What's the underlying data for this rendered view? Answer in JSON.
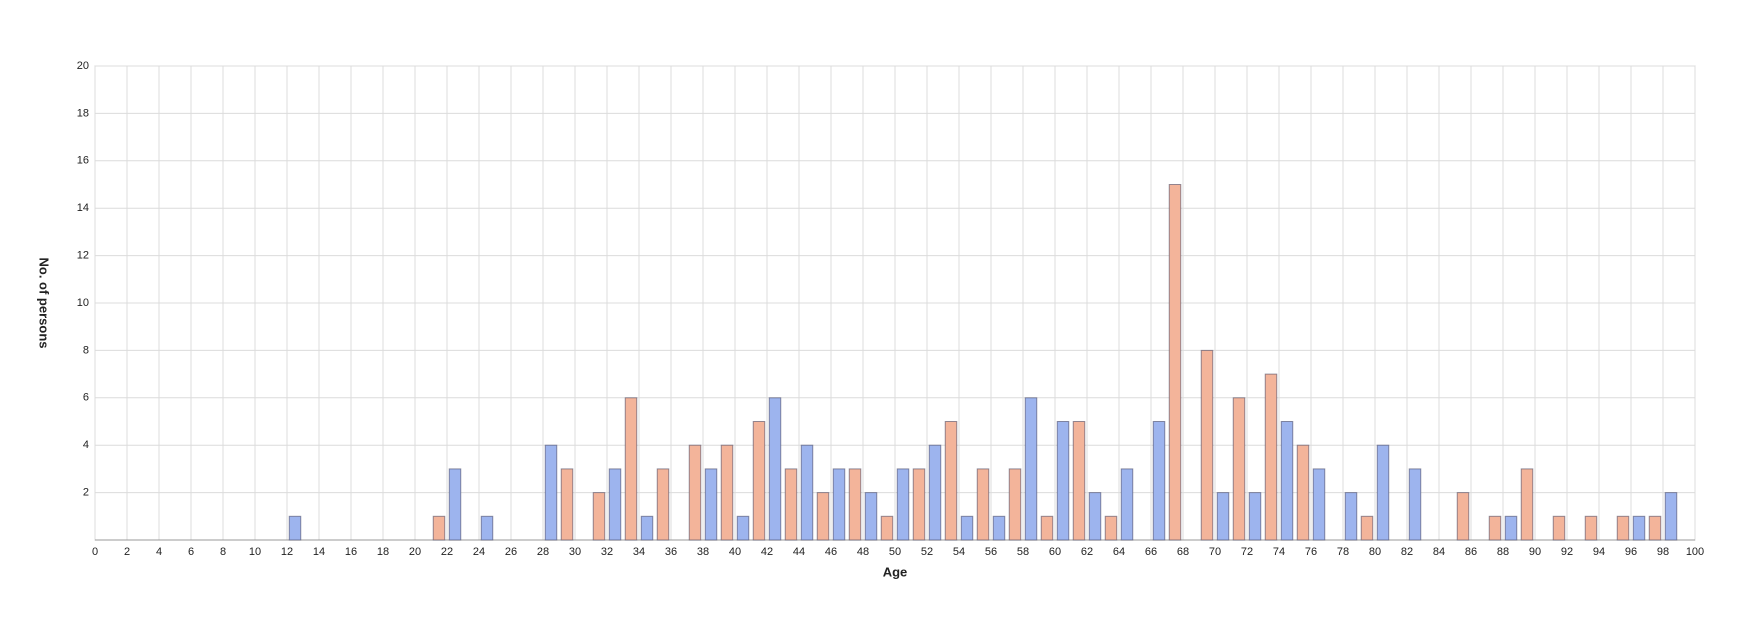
{
  "chart_data": {
    "type": "bar",
    "x_label": "Age",
    "y_label": "No. of persons",
    "series": [
      {
        "color": "#9db4ee",
        "x": [
          12,
          22,
          24,
          28,
          32,
          34,
          38,
          40,
          42,
          44,
          46,
          48,
          50,
          52,
          54,
          56,
          58,
          60,
          62,
          64,
          66,
          70,
          72,
          74,
          76,
          78,
          80,
          82,
          88,
          96,
          98
        ],
        "values": [
          1,
          3,
          1,
          4,
          3,
          1,
          3,
          1,
          6,
          4,
          3,
          2,
          3,
          4,
          1,
          1,
          6,
          5,
          2,
          3,
          5,
          2,
          2,
          5,
          3,
          2,
          4,
          3,
          1,
          1,
          2
        ]
      },
      {
        "color": "#f3b49a",
        "x": [
          21,
          29,
          31,
          33,
          35,
          37,
          39,
          41,
          43,
          45,
          47,
          49,
          51,
          53,
          55,
          57,
          59,
          61,
          63,
          67,
          69,
          71,
          73,
          75,
          79,
          85,
          87,
          89,
          91,
          93,
          95,
          97
        ],
        "values": [
          1,
          3,
          2,
          6,
          3,
          4,
          4,
          5,
          3,
          2,
          3,
          1,
          3,
          5,
          3,
          3,
          1,
          5,
          1,
          15,
          8,
          6,
          7,
          4,
          1,
          2,
          1,
          3,
          1,
          1,
          1,
          1
        ]
      }
    ],
    "xlim": [
      0,
      100
    ],
    "xticks": [
      0,
      2,
      4,
      6,
      8,
      10,
      12,
      14,
      16,
      18,
      20,
      22,
      24,
      26,
      28,
      30,
      32,
      34,
      36,
      38,
      40,
      42,
      44,
      46,
      48,
      50,
      52,
      54,
      56,
      58,
      60,
      62,
      64,
      66,
      68,
      70,
      72,
      74,
      76,
      78,
      80,
      82,
      84,
      86,
      88,
      90,
      92,
      94,
      96,
      98,
      100
    ],
    "ylim": [
      0,
      20
    ],
    "yticks": [
      2,
      4,
      6,
      8,
      10,
      12,
      14,
      16,
      18,
      20
    ],
    "grid": true
  }
}
